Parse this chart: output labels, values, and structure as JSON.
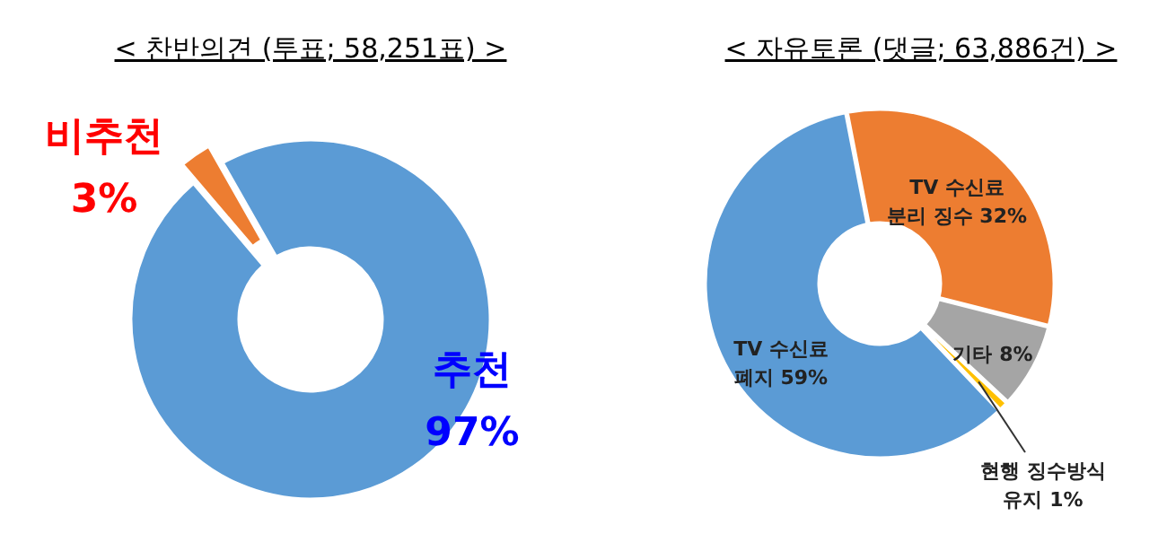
{
  "chart_data": [
    {
      "type": "donut",
      "title": "< 찬반의견 (투표; 58,251표) >",
      "categories": [
        "비추천",
        "추천"
      ],
      "values": [
        3,
        97
      ],
      "colors": [
        "#ed7d31",
        "#5b9bd5"
      ],
      "value_labels": [
        "3%",
        "97%"
      ]
    },
    {
      "type": "donut",
      "title": "< 자유토론 (댓글; 63,886건) >",
      "categories": [
        "TV 수신료\n분리 징수",
        "기타",
        "현행 징수방식\n유지",
        "TV 수신료\n폐지"
      ],
      "values": [
        32,
        8,
        1,
        59
      ],
      "colors": [
        "#ed7d31",
        "#a5a5a5",
        "#ffc000",
        "#5b9bd5"
      ],
      "value_labels": [
        "32%",
        "8%",
        "1%",
        "59%"
      ]
    }
  ]
}
